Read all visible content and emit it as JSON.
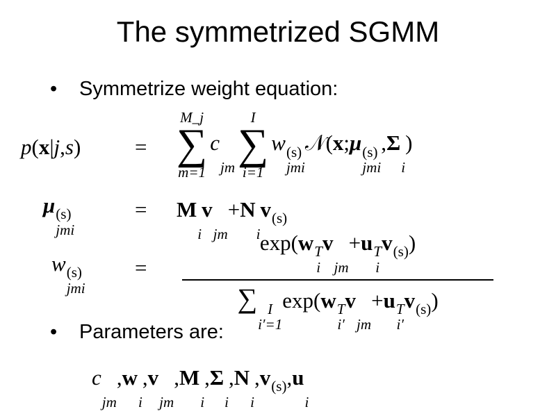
{
  "title": "The symmetrized SGMM",
  "bullets": [
    {
      "symbol": "•",
      "text": "Symmetrize weight equation:"
    },
    {
      "symbol": "•",
      "text": "Parameters are:"
    }
  ],
  "equals": "=",
  "equations": {
    "eq1_lhs": [
      {
        "t": "p",
        "s": "i"
      },
      {
        "t": "(",
        "s": "r"
      },
      {
        "t": "x",
        "s": "b"
      },
      {
        "t": "|",
        "s": "r"
      },
      {
        "t": "j",
        "s": "i"
      },
      {
        "t": ", ",
        "s": "r"
      },
      {
        "t": "s",
        "s": "i"
      },
      {
        "t": ")",
        "s": "r"
      }
    ],
    "eq1_rhs": [
      {
        "op": "∑",
        "over": "M_j",
        "under": "m=1"
      },
      {
        "t": "c",
        "s": "i",
        "sub": "jm"
      },
      {
        "op": "∑",
        "over": "I",
        "under": "i=1"
      },
      {
        "t": "w",
        "s": "i",
        "sub": "jmi",
        "sup": "(s)"
      },
      {
        "t": "𝒩",
        "s": "r"
      },
      {
        "t": "(",
        "s": "r"
      },
      {
        "t": "x",
        "s": "b"
      },
      {
        "t": "; ",
        "s": "r"
      },
      {
        "t": "μ",
        "s": "bi",
        "sub": "jmi",
        "sup": "(s)"
      },
      {
        "t": ", ",
        "s": "r"
      },
      {
        "t": "Σ",
        "s": "b",
        "sub": "i"
      },
      {
        "t": ")",
        "s": "r"
      }
    ],
    "eq2_lhs": [
      {
        "t": "μ",
        "s": "bi",
        "sub": "jmi",
        "sup": "(s)"
      }
    ],
    "eq2_rhs": [
      {
        "t": "M",
        "s": "b",
        "sub": "i"
      },
      {
        "t": "v",
        "s": "b",
        "sub": "jm"
      },
      {
        "t": " + ",
        "s": "r"
      },
      {
        "t": "N",
        "s": "b",
        "sub": "i"
      },
      {
        "t": "v",
        "s": "b",
        "sup": "(s)"
      }
    ],
    "eq3_lhs": [
      {
        "t": "w",
        "s": "i",
        "sub": "jmi",
        "sup": "(s)"
      }
    ],
    "eq3_num": [
      {
        "t": "exp(",
        "s": "r"
      },
      {
        "t": "w",
        "s": "b",
        "sub": "i",
        "sup": "T"
      },
      {
        "t": "v",
        "s": "b",
        "sub": "jm"
      },
      {
        "t": " + ",
        "s": "r"
      },
      {
        "t": "u",
        "s": "b",
        "sub": "i",
        "sup": "T"
      },
      {
        "t": "v",
        "s": "b",
        "sup": "(s)"
      },
      {
        "t": ")",
        "s": "r"
      }
    ],
    "eq3_den": [
      {
        "sop": "∑",
        "sub": "i′=1",
        "sup": "I"
      },
      {
        "t": " exp(",
        "s": "r"
      },
      {
        "t": "w",
        "s": "b",
        "sub": "i′",
        "sup": "T"
      },
      {
        "t": "v",
        "s": "b",
        "sub": "jm"
      },
      {
        "t": " + ",
        "s": "r"
      },
      {
        "t": "u",
        "s": "b",
        "sub": "i′",
        "sup": "T"
      },
      {
        "t": "v",
        "s": "b",
        "sup": "(s)"
      },
      {
        "t": ")",
        "s": "r"
      }
    ],
    "params": [
      {
        "t": "c",
        "s": "i",
        "sub": "jm"
      },
      {
        "t": ", ",
        "s": "r"
      },
      {
        "t": "w",
        "s": "b",
        "sub": "i"
      },
      {
        "t": ",  ",
        "s": "r"
      },
      {
        "t": "v",
        "s": "b",
        "sub": "jm"
      },
      {
        "t": ",  ",
        "s": "r"
      },
      {
        "t": "M",
        "s": "b",
        "sub": "i"
      },
      {
        "t": ",  ",
        "s": "r"
      },
      {
        "t": "Σ",
        "s": "b",
        "sub": "i"
      },
      {
        "t": ", ",
        "s": "r"
      },
      {
        "t": "N",
        "s": "b",
        "sub": "i"
      },
      {
        "t": ", ",
        "s": "r"
      },
      {
        "t": "v",
        "s": "b",
        "sup": "(s)"
      },
      {
        "t": ", ",
        "s": "r"
      },
      {
        "t": "u",
        "s": "b",
        "sub": "i"
      }
    ]
  }
}
